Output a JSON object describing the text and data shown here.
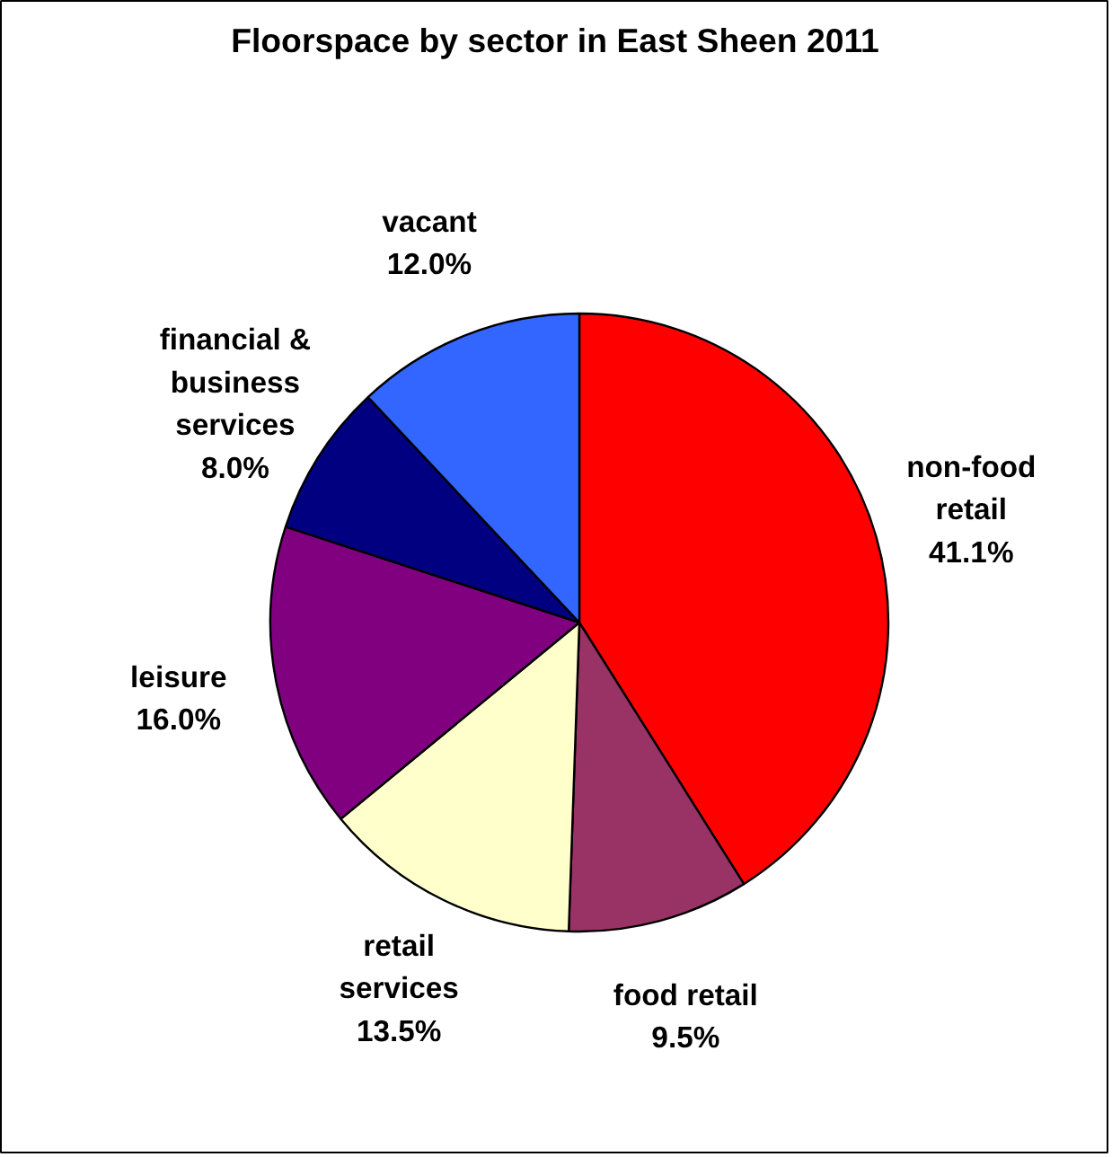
{
  "chart_data": {
    "type": "pie",
    "title": "Floorspace by sector in East Sheen 2011",
    "categories": [
      "non-food retail",
      "food retail",
      "retail services",
      "leisure",
      "financial & business services",
      "vacant"
    ],
    "values": [
      41.1,
      9.5,
      13.5,
      16.0,
      8.0,
      12.0
    ],
    "value_labels": [
      "41.1%",
      "9.5%",
      "13.5%",
      "16.0%",
      "8.0%",
      "12.0%"
    ],
    "colors": [
      "#ff0000",
      "#993366",
      "#ffffcc",
      "#800080",
      "#000080",
      "#3366ff"
    ]
  }
}
